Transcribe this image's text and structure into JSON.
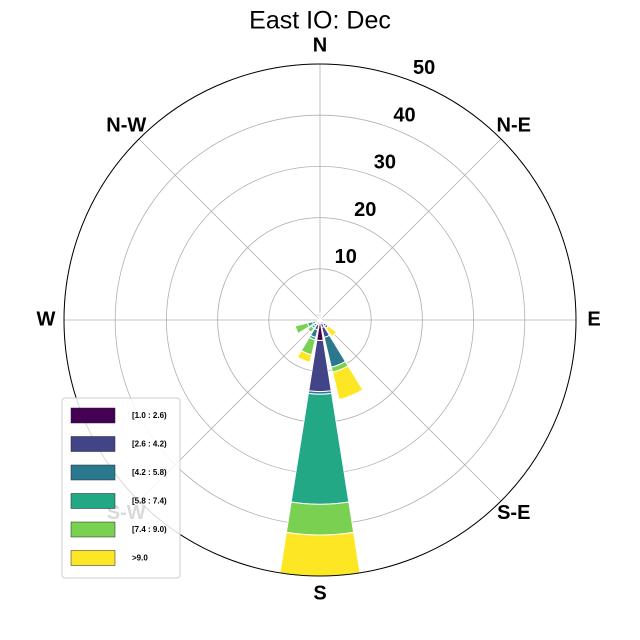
{
  "chart_data": {
    "type": "windrose",
    "title": "East IO: Dec",
    "categories": [
      "N",
      null,
      "N-E",
      null,
      "E",
      null,
      "S-E",
      null,
      "S",
      null,
      "S-W",
      null,
      "W",
      null,
      "N-W",
      null
    ],
    "rlim": [
      0,
      50
    ],
    "rticks": [
      10,
      20,
      30,
      40,
      50
    ],
    "grid": true,
    "legend": "lower left",
    "series": [
      {
        "name": "[1.0 : 2.6)",
        "color": "#440154",
        "values": [
          0.5,
          0.5,
          0.3,
          0.3,
          0.3,
          0.3,
          1,
          1.5,
          4,
          1,
          0.5,
          0.5,
          0.3,
          0.3,
          0.3,
          0.5
        ]
      },
      {
        "name": "[2.6 : 4.2)",
        "color": "#414487",
        "values": [
          0.5,
          0.3,
          0.3,
          0,
          0,
          0.3,
          0.5,
          2,
          10,
          1,
          0.5,
          0.5,
          0,
          0.3,
          0.3,
          0.5
        ]
      },
      {
        "name": "[4.2 : 5.8)",
        "color": "#2a788e",
        "values": [
          0.3,
          0,
          0,
          0,
          0,
          0,
          0.5,
          6,
          0.5,
          1.5,
          0.5,
          0.5,
          0,
          0,
          0,
          0.3
        ]
      },
      {
        "name": "[5.8 : 7.4)",
        "color": "#22a884",
        "values": [
          0,
          0,
          0,
          0,
          0,
          0,
          0,
          0,
          21.5,
          0.5,
          0.5,
          1,
          0,
          0,
          0,
          0
        ]
      },
      {
        "name": "[7.4 : 9.0)",
        "color": "#7ad151",
        "values": [
          0,
          0,
          0,
          0,
          0,
          0,
          0,
          1,
          6,
          3,
          1,
          2.5,
          0,
          0,
          0,
          0
        ]
      },
      {
        "name": ">9.0",
        "color": "#fde725",
        "values": [
          0,
          0,
          0,
          0,
          0,
          0,
          2,
          5.5,
          8,
          1.5,
          0,
          0,
          0,
          0,
          0,
          0
        ]
      }
    ]
  }
}
